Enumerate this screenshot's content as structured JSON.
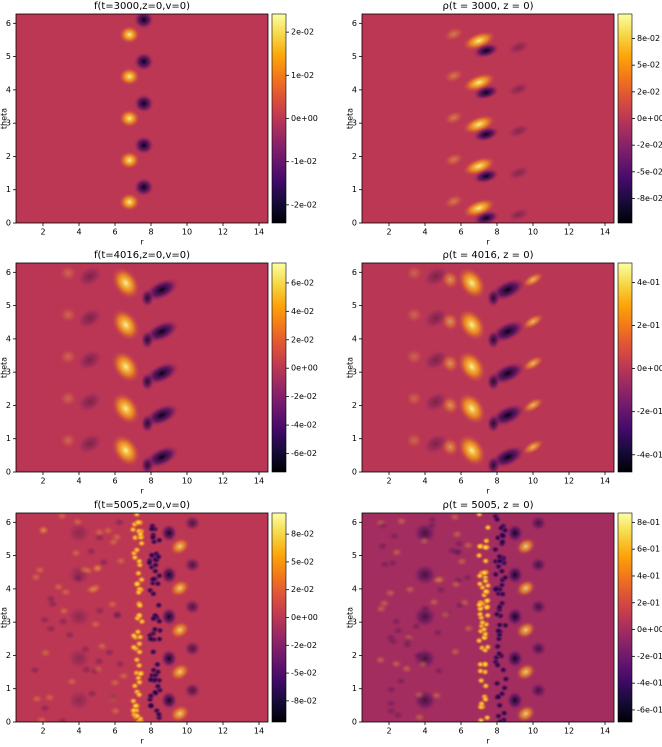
{
  "chart_data": [
    {
      "type": "heatmap",
      "title": "f(t=3000,z=0,v=0)",
      "x_label": "r",
      "y_label": "theta",
      "colormap": "inferno",
      "xlim": [
        0.5,
        14.5
      ],
      "xticks": [
        2,
        4,
        6,
        8,
        10,
        12,
        14
      ],
      "ylim": [
        0,
        6.28
      ],
      "yticks": [
        0,
        1,
        2,
        3,
        4,
        5,
        6
      ],
      "clim": [
        -0.0242,
        0.0242
      ],
      "cticks": [
        {
          "value": 0.02,
          "label": "2e-02"
        },
        {
          "value": 0.01,
          "label": "1e-02"
        },
        {
          "value": 0,
          "label": "0e+00"
        },
        {
          "value": -0.01,
          "label": "-1e-02"
        },
        {
          "value": -0.02,
          "label": "-2e-02"
        }
      ]
    },
    {
      "type": "heatmap",
      "title": "ρ(t = 3000, z = 0)",
      "x_label": "r",
      "y_label": "theta",
      "colormap": "inferno",
      "xlim": [
        0.5,
        14.5
      ],
      "xticks": [
        2,
        4,
        6,
        8,
        10,
        12,
        14
      ],
      "ylim": [
        0,
        6.28
      ],
      "yticks": [
        0,
        1,
        2,
        3,
        4,
        5,
        6
      ],
      "clim": [
        -0.098,
        0.098
      ],
      "cticks": [
        {
          "value": 0.075,
          "label": "8e-02"
        },
        {
          "value": 0.05,
          "label": "5e-02"
        },
        {
          "value": 0.025,
          "label": "2e-02"
        },
        {
          "value": 0,
          "label": "0e+00"
        },
        {
          "value": -0.025,
          "label": "-2e-02"
        },
        {
          "value": -0.05,
          "label": "-5e-02"
        },
        {
          "value": -0.075,
          "label": "-8e-02"
        }
      ]
    },
    {
      "type": "heatmap",
      "title": "f(t=4016,z=0,v=0)",
      "x_label": "r",
      "y_label": "theta",
      "colormap": "inferno",
      "xlim": [
        0.5,
        14.5
      ],
      "xticks": [
        2,
        4,
        6,
        8,
        10,
        12,
        14
      ],
      "ylim": [
        0,
        6.28
      ],
      "yticks": [
        0,
        1,
        2,
        3,
        4,
        5,
        6
      ],
      "clim": [
        -0.073,
        0.074
      ],
      "cticks": [
        {
          "value": 0.06,
          "label": "6e-02"
        },
        {
          "value": 0.04,
          "label": "4e-02"
        },
        {
          "value": 0.02,
          "label": "2e-02"
        },
        {
          "value": 0,
          "label": "0e+00"
        },
        {
          "value": -0.02,
          "label": "-2e-02"
        },
        {
          "value": -0.04,
          "label": "-4e-02"
        },
        {
          "value": -0.06,
          "label": "-6e-02"
        }
      ]
    },
    {
      "type": "heatmap",
      "title": "ρ(t = 4016, z = 0)",
      "x_label": "r",
      "y_label": "theta",
      "colormap": "inferno",
      "xlim": [
        0.5,
        14.5
      ],
      "xticks": [
        2,
        4,
        6,
        8,
        10,
        12,
        14
      ],
      "ylim": [
        0,
        6.28
      ],
      "yticks": [
        0,
        1,
        2,
        3,
        4,
        5,
        6
      ],
      "clim": [
        -0.48,
        0.49
      ],
      "cticks": [
        {
          "value": 0.4,
          "label": "4e-01"
        },
        {
          "value": 0.2,
          "label": "2e-01"
        },
        {
          "value": 0,
          "label": "0e+00"
        },
        {
          "value": -0.2,
          "label": "-2e-01"
        },
        {
          "value": -0.4,
          "label": "-4e-01"
        }
      ]
    },
    {
      "type": "heatmap",
      "title": "f(t=5005,z=0,v=0)",
      "x_label": "r",
      "y_label": "theta",
      "colormap": "inferno",
      "xlim": [
        0.5,
        14.5
      ],
      "xticks": [
        2,
        4,
        6,
        8,
        10,
        12,
        14
      ],
      "ylim": [
        0,
        6.28
      ],
      "yticks": [
        0,
        1,
        2,
        3,
        4,
        5,
        6
      ],
      "clim": [
        -0.094,
        0.094
      ],
      "cticks": [
        {
          "value": 0.075,
          "label": "8e-02"
        },
        {
          "value": 0.05,
          "label": "5e-02"
        },
        {
          "value": 0.025,
          "label": "2e-02"
        },
        {
          "value": 0,
          "label": "0e+00"
        },
        {
          "value": -0.025,
          "label": "-2e-02"
        },
        {
          "value": -0.05,
          "label": "-5e-02"
        },
        {
          "value": -0.075,
          "label": "-8e-02"
        }
      ]
    },
    {
      "type": "heatmap",
      "title": "ρ(t = 5005, z = 0)",
      "x_label": "r",
      "y_label": "theta",
      "colormap": "inferno",
      "xlim": [
        0.5,
        14.5
      ],
      "xticks": [
        2,
        4,
        6,
        8,
        10,
        12,
        14
      ],
      "ylim": [
        0,
        6.28
      ],
      "yticks": [
        0,
        1,
        2,
        3,
        4,
        5,
        6
      ],
      "clim": [
        -0.69,
        0.87
      ],
      "cticks": [
        {
          "value": 0.8,
          "label": "8e-01"
        },
        {
          "value": 0.6,
          "label": "6e-01"
        },
        {
          "value": 0.4,
          "label": "4e-01"
        },
        {
          "value": 0.2,
          "label": "2e-01"
        },
        {
          "value": 0,
          "label": "0e+00"
        },
        {
          "value": -0.2,
          "label": "-2e-01"
        },
        {
          "value": -0.4,
          "label": "-4e-01"
        },
        {
          "value": -0.6,
          "label": "-6e-01"
        }
      ]
    }
  ]
}
